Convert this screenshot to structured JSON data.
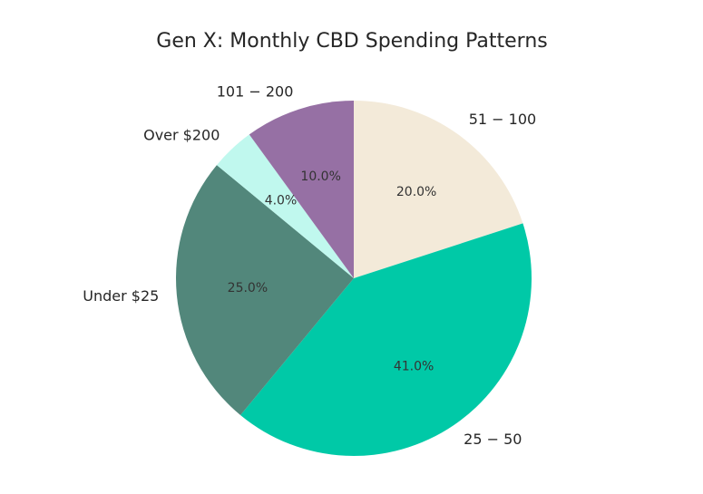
{
  "chart_data": {
    "type": "pie",
    "title": "Gen X: Monthly CBD Spending Patterns",
    "start_angle_deg": 90,
    "direction": "clockwise",
    "slices": [
      {
        "label": "51 − 100",
        "value": 20.0,
        "pct_label": "20.0%",
        "color": "#F3EAD9"
      },
      {
        "label": "25 − 50",
        "value": 41.0,
        "pct_label": "41.0%",
        "color": "#00C9A7"
      },
      {
        "label": "Under $25",
        "value": 25.0,
        "pct_label": "25.0%",
        "color": "#52877B"
      },
      {
        "label": "Over $200",
        "value": 4.0,
        "pct_label": "4.0%",
        "color": "#C0F8EE"
      },
      {
        "label": "101 − 200",
        "value": 10.0,
        "pct_label": "10.0%",
        "color": "#9670A4"
      }
    ],
    "legend": "none"
  }
}
